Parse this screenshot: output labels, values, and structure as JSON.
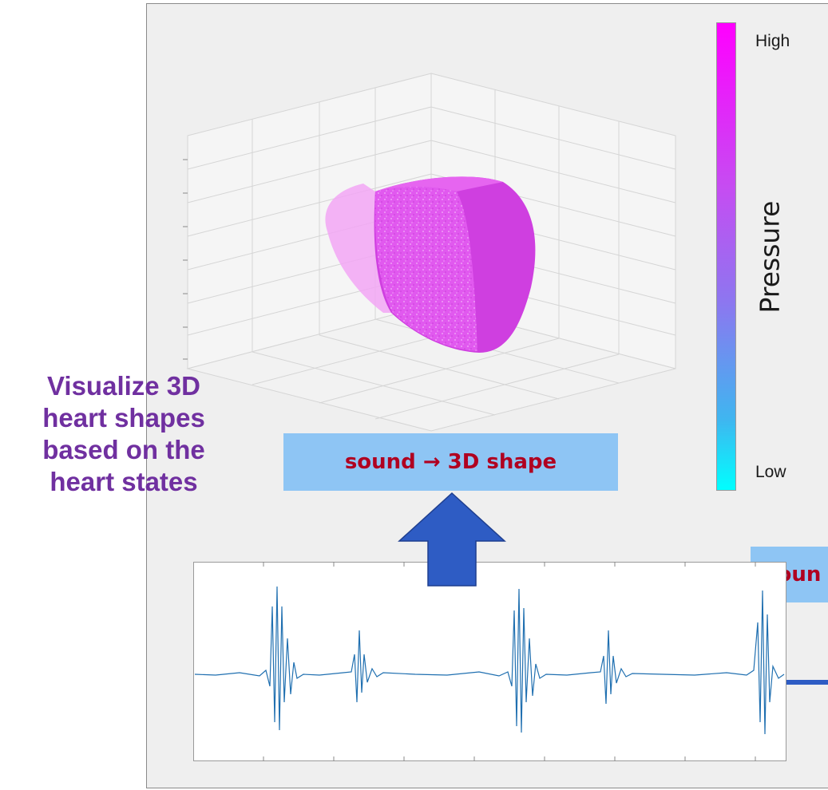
{
  "colorbar": {
    "title": "Pressure",
    "high_label": "High",
    "low_label": "Low",
    "top_color": "#ff00ff",
    "bottom_color": "#00ffff"
  },
  "callouts": {
    "main": "sound → 3D shape",
    "side": "soun"
  },
  "left_caption": {
    "line1": "Visualize 3D",
    "line2": "heart shapes",
    "line3": "based on the",
    "line4": "heart states"
  },
  "colors": {
    "panel_bg": "#efefef",
    "heart": "#e64ff0",
    "callout_bg": "#8ec5f4",
    "callout_text": "#b00020",
    "caption_text": "#7030a0",
    "arrow": "#2e5cc4",
    "waveform": "#1f6fb0"
  },
  "icons": {
    "up_arrow": "up-arrow-icon",
    "connector_line": "connector-line"
  }
}
